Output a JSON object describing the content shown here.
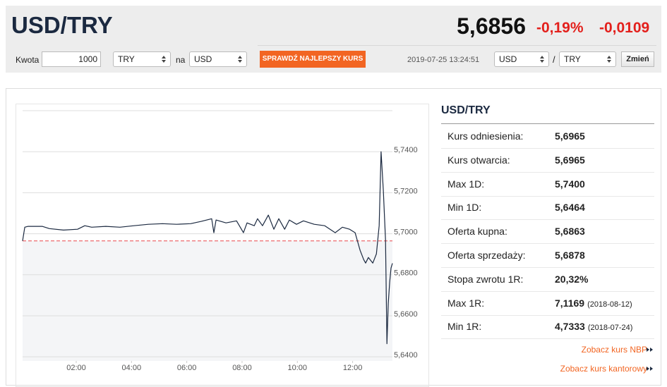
{
  "header": {
    "title": "USD/TRY",
    "price": "5,6856",
    "change_pct": "-0,19%",
    "change_abs": "-0,0109"
  },
  "converter": {
    "amount_label": "Kwota",
    "amount": "1000",
    "from": "TRY",
    "joiner": "na",
    "to": "USD",
    "button": "SPRAWDŹ NAJLEPSZY KURS",
    "timestamp": "2019-07-25 13:24:51",
    "pair_from": "USD",
    "separator": "/",
    "pair_to": "TRY",
    "swap": "Zmień"
  },
  "panel": {
    "title": "USD/TRY",
    "rows": [
      {
        "label": "Kurs odniesienia:",
        "value": "5,6965"
      },
      {
        "label": "Kurs otwarcia:",
        "value": "5,6965"
      },
      {
        "label": "Max 1D:",
        "value": "5,7400"
      },
      {
        "label": "Min 1D:",
        "value": "5,6464"
      },
      {
        "label": "Oferta kupna:",
        "value": "5,6863"
      },
      {
        "label": "Oferta sprzedaży:",
        "value": "5,6878"
      },
      {
        "label": "Stopa zwrotu 1R:",
        "value": "20,32%"
      },
      {
        "label": "Max 1R:",
        "value": "7,1169",
        "date": "(2018-08-12)"
      },
      {
        "label": "Min 1R:",
        "value": "4,7333",
        "date": "(2018-07-24)"
      }
    ],
    "links": [
      "Zobacz kurs NBP",
      "Zobacz kurs kantorowy"
    ]
  },
  "chart_data": {
    "type": "line",
    "x": [
      0.06,
      0.14,
      0.26,
      0.77,
      1.03,
      1.54,
      2.05,
      2.31,
      2.56,
      3.07,
      3.58,
      4.09,
      4.61,
      5.12,
      5.63,
      6.14,
      6.52,
      6.9,
      6.98,
      7.06,
      7.42,
      7.8,
      8.05,
      8.18,
      8.44,
      8.56,
      8.74,
      8.95,
      9.15,
      9.33,
      9.54,
      9.71,
      9.97,
      10.22,
      10.61,
      10.99,
      11.37,
      11.63,
      11.89,
      12.09,
      12.27,
      12.4,
      12.47,
      12.57,
      12.73,
      12.86,
      12.96,
      13.03,
      13.11,
      13.19,
      13.24,
      13.29,
      13.34,
      13.39,
      13.44
    ],
    "values": [
      5.6965,
      5.7032,
      5.7036,
      5.7036,
      5.7025,
      5.7018,
      5.7022,
      5.7039,
      5.7032,
      5.7036,
      5.7032,
      5.7039,
      5.7046,
      5.7049,
      5.7046,
      5.7049,
      5.706,
      5.7073,
      5.7005,
      5.7067,
      5.7053,
      5.7063,
      5.7005,
      5.7053,
      5.7039,
      5.7073,
      5.7039,
      5.7091,
      5.7022,
      5.7073,
      5.7022,
      5.7067,
      5.7046,
      5.7063,
      5.7046,
      5.7039,
      5.7005,
      5.7032,
      5.7022,
      5.7005,
      5.6919,
      5.6874,
      5.6857,
      5.6884,
      5.6857,
      5.6902,
      5.7039,
      5.74,
      5.7211,
      5.697,
      5.6464,
      5.6661,
      5.6764,
      5.6833,
      5.6856
    ],
    "color": "#1b2940",
    "reference": 5.6965,
    "reference_color": "#e8474a",
    "xlim": [
      0.06,
      13.44
    ],
    "xticks": [
      {
        "value": 2,
        "label": "02:00"
      },
      {
        "value": 4,
        "label": "04:00"
      },
      {
        "value": 6,
        "label": "06:00"
      },
      {
        "value": 8,
        "label": "08:00"
      },
      {
        "value": 10,
        "label": "10:00"
      },
      {
        "value": 12,
        "label": "12:00"
      }
    ],
    "ylim": [
      5.638,
      5.76
    ],
    "yticks": [
      {
        "value": 5.64,
        "label": "5,6400"
      },
      {
        "value": 5.66,
        "label": "5,6600"
      },
      {
        "value": 5.68,
        "label": "5,6800"
      },
      {
        "value": 5.7,
        "label": "5,7000"
      },
      {
        "value": 5.72,
        "label": "5,7200"
      },
      {
        "value": 5.74,
        "label": "5,7400"
      }
    ],
    "grid": true
  }
}
